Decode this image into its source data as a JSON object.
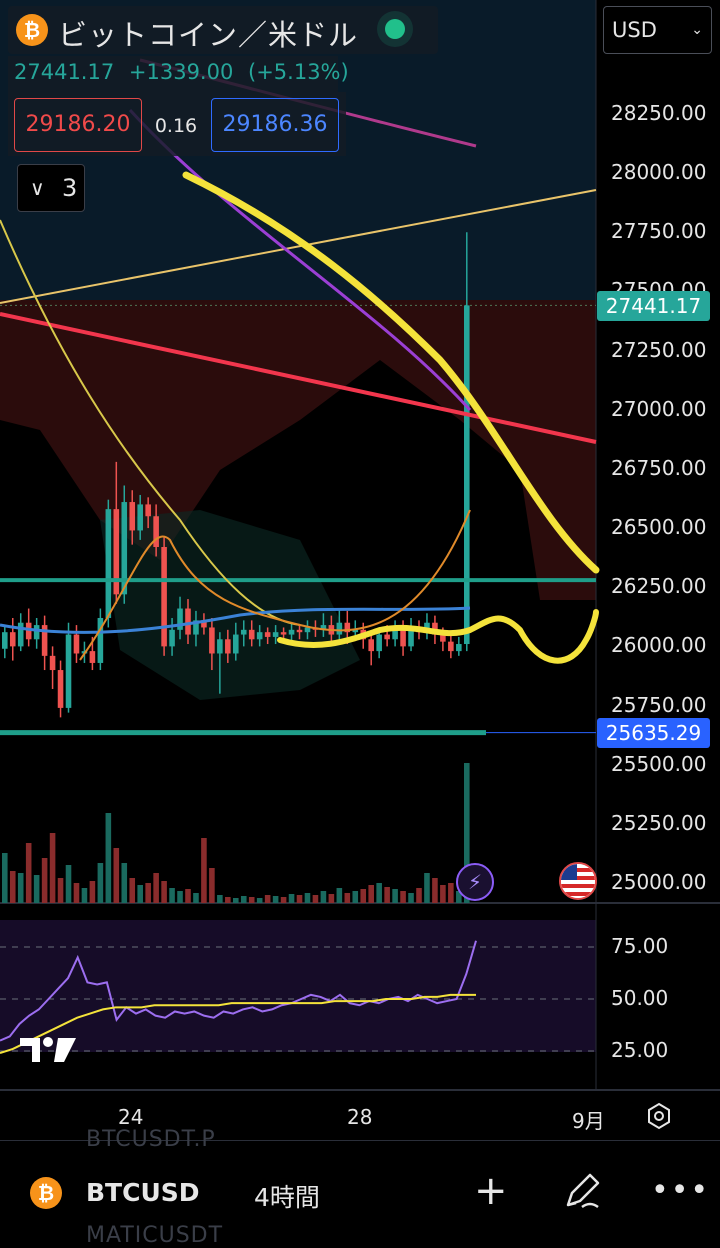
{
  "header": {
    "title": "ビットコイン／米ドル",
    "coin_glyph": "₿",
    "last_price": "27441.17",
    "change": "+1339.00",
    "change_pct": "(+5.13%)",
    "bid": "29186.20",
    "spread": "0.16",
    "ask": "29186.36",
    "indicators_count": "3",
    "chevron_glyph": "∨"
  },
  "currency_select": {
    "value": "USD",
    "caret": "⌄"
  },
  "price_tags": {
    "current": "27441.17",
    "level": "25635.29"
  },
  "colors": {
    "up": "#26a69a",
    "down": "#ef5350",
    "tag_current": "#26a69a",
    "tag_level": "#2962ff",
    "yellow_ma": "#f4e33b",
    "red_line": "#f2364d",
    "purple_line": "#9b3fd4",
    "teal_level": "#1f9e8a"
  },
  "bottom_bar": {
    "symbol": "BTCUSD",
    "timeframe": "4時間",
    "ghost_top": "BTCUSDT.P",
    "ghost_bottom": "MATICUSDT",
    "plus": "+",
    "more": "•••"
  },
  "chart_data": {
    "type": "candlestick",
    "price_axis": {
      "labels": [
        "28250.00",
        "28000.00",
        "27750.00",
        "27500.00",
        "27250.00",
        "27000.00",
        "26750.00",
        "26500.00",
        "26250.00",
        "26000.00",
        "25750.00",
        "25500.00",
        "25250.00",
        "25000.00"
      ],
      "range": [
        24950,
        28350
      ]
    },
    "rsi_axis": {
      "labels": [
        "75.00",
        "50.00",
        "25.00"
      ],
      "range": [
        0,
        100
      ]
    },
    "x_axis": {
      "labels": [
        "24",
        "28",
        "9月"
      ]
    },
    "horizontal_levels": [
      26280,
      25635.29
    ],
    "candles": [
      [
        25990,
        26060,
        25950,
        26090
      ],
      [
        26060,
        26000,
        26120,
        25940
      ],
      [
        26000,
        26100,
        26140,
        25980
      ],
      [
        26100,
        26030,
        26160,
        26000
      ],
      [
        26030,
        26090,
        26120,
        25990
      ],
      [
        26090,
        25960,
        26130,
        25900
      ],
      [
        25960,
        25900,
        26000,
        25820
      ],
      [
        25900,
        25740,
        25940,
        25700
      ],
      [
        25740,
        26050,
        26100,
        25720
      ],
      [
        26050,
        25970,
        26090,
        25930
      ],
      [
        25970,
        25980,
        26020,
        25930
      ],
      [
        25980,
        25930,
        26040,
        25900
      ],
      [
        25930,
        26120,
        26160,
        25900
      ],
      [
        26120,
        26580,
        26620,
        26080
      ],
      [
        26580,
        26220,
        26780,
        26180
      ],
      [
        26220,
        26610,
        26680,
        26180
      ],
      [
        26610,
        26490,
        26660,
        26430
      ],
      [
        26490,
        26600,
        26640,
        26450
      ],
      [
        26600,
        26550,
        26630,
        26500
      ],
      [
        26550,
        26420,
        26600,
        26380
      ],
      [
        26420,
        26000,
        26460,
        25960
      ],
      [
        26000,
        26070,
        26120,
        25960
      ],
      [
        26070,
        26160,
        26210,
        26030
      ],
      [
        26160,
        26050,
        26200,
        26010
      ],
      [
        26050,
        26110,
        26150,
        26000
      ],
      [
        26110,
        26080,
        26140,
        26050
      ],
      [
        26080,
        25970,
        26120,
        25900
      ],
      [
        25970,
        26030,
        26060,
        25800
      ],
      [
        26030,
        25970,
        26070,
        25930
      ],
      [
        25970,
        26050,
        26100,
        25940
      ],
      [
        26050,
        26070,
        26110,
        26000
      ],
      [
        26070,
        26030,
        26110,
        26000
      ],
      [
        26030,
        26060,
        26090,
        26000
      ],
      [
        26060,
        26040,
        26080,
        26010
      ],
      [
        26040,
        26060,
        26090,
        26010
      ],
      [
        26060,
        26050,
        26080,
        26020
      ],
      [
        26050,
        26070,
        26100,
        26020
      ],
      [
        26070,
        26060,
        26090,
        26030
      ],
      [
        26060,
        26080,
        26110,
        26030
      ],
      [
        26080,
        26070,
        26110,
        26040
      ],
      [
        26070,
        26090,
        26140,
        26040
      ],
      [
        26090,
        26050,
        26130,
        26010
      ],
      [
        26050,
        26100,
        26160,
        26020
      ],
      [
        26100,
        26060,
        26150,
        26010
      ],
      [
        26060,
        26070,
        26110,
        26030
      ],
      [
        26070,
        26030,
        26100,
        25990
      ],
      [
        26030,
        25980,
        26060,
        25920
      ],
      [
        25980,
        26050,
        26080,
        25950
      ],
      [
        26050,
        26030,
        26090,
        26000
      ],
      [
        26030,
        26070,
        26110,
        26000
      ],
      [
        26070,
        26000,
        26110,
        25960
      ],
      [
        26000,
        26080,
        26120,
        25980
      ],
      [
        26080,
        26060,
        26110,
        26030
      ],
      [
        26060,
        26100,
        26140,
        26030
      ],
      [
        26100,
        26050,
        26130,
        26010
      ],
      [
        26050,
        26020,
        26080,
        25980
      ],
      [
        26020,
        25980,
        26050,
        25950
      ],
      [
        25980,
        26010,
        26040,
        25960
      ],
      [
        26010,
        27441.17,
        27750,
        25980
      ]
    ],
    "volume": [
      50,
      32,
      30,
      60,
      28,
      45,
      70,
      25,
      38,
      20,
      15,
      22,
      40,
      90,
      55,
      40,
      25,
      18,
      20,
      30,
      22,
      15,
      12,
      14,
      10,
      65,
      35,
      8,
      6,
      5,
      7,
      6,
      5,
      8,
      7,
      6,
      9,
      8,
      10,
      8,
      12,
      9,
      15,
      10,
      12,
      14,
      18,
      20,
      16,
      14,
      12,
      10,
      15,
      30,
      25,
      18,
      20,
      12,
      140
    ],
    "rsi": [
      30,
      32,
      38,
      42,
      45,
      50,
      55,
      60,
      70,
      58,
      57,
      58,
      40,
      46,
      43,
      45,
      42,
      41,
      44,
      43,
      44,
      42,
      41,
      44,
      43,
      45,
      46,
      44,
      45,
      47,
      48,
      50,
      52,
      51,
      49,
      52,
      48,
      47,
      49,
      48,
      50,
      51,
      49,
      52,
      50,
      48,
      49,
      50,
      62,
      78
    ],
    "rsi_ma": [
      24,
      26,
      29,
      32,
      35,
      38,
      41,
      43,
      45,
      46,
      46,
      46,
      47,
      47,
      47,
      47,
      47,
      47,
      48,
      48,
      48,
      48,
      48,
      48,
      48,
      48,
      49,
      49,
      49,
      49,
      50,
      50,
      50,
      51,
      51,
      52,
      52,
      52
    ]
  }
}
